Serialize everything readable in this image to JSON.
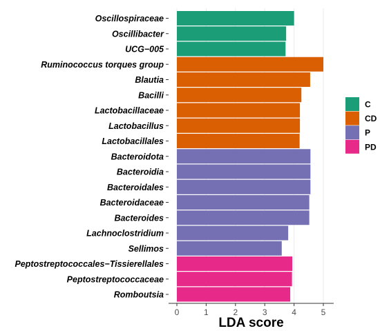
{
  "chart_data": {
    "type": "bar",
    "orientation": "horizontal",
    "title": "",
    "xlabel": "LDA score",
    "ylabel": "",
    "xlim": [
      0,
      5.3
    ],
    "xticks": [
      0,
      1,
      2,
      3,
      4,
      5
    ],
    "grid": "vertical",
    "legend_position": "right",
    "groups": [
      {
        "name": "C",
        "color": "#1b9e77"
      },
      {
        "name": "CD",
        "color": "#d95f02"
      },
      {
        "name": "P",
        "color": "#7570b3"
      },
      {
        "name": "PD",
        "color": "#e7298a"
      }
    ],
    "bars": [
      {
        "label": "Oscillospiraceae",
        "value": 4.0,
        "group": "C"
      },
      {
        "label": "Oscillibacter",
        "value": 3.73,
        "group": "C"
      },
      {
        "label": "UCG−005",
        "value": 3.71,
        "group": "C"
      },
      {
        "label": "Ruminococcus torques group",
        "value": 5.0,
        "group": "CD"
      },
      {
        "label": "Blautia",
        "value": 4.55,
        "group": "CD"
      },
      {
        "label": "Bacilli",
        "value": 4.25,
        "group": "CD"
      },
      {
        "label": "Lactobacillaceae",
        "value": 4.2,
        "group": "CD"
      },
      {
        "label": "Lactobacillus",
        "value": 4.2,
        "group": "CD"
      },
      {
        "label": "Lactobacillales",
        "value": 4.19,
        "group": "CD"
      },
      {
        "label": "Bacteroidota",
        "value": 4.56,
        "group": "P"
      },
      {
        "label": "Bacteroidia",
        "value": 4.56,
        "group": "P"
      },
      {
        "label": "Bacteroidales",
        "value": 4.56,
        "group": "P"
      },
      {
        "label": "Bacteroidaceae",
        "value": 4.52,
        "group": "P"
      },
      {
        "label": "Bacteroides",
        "value": 4.52,
        "group": "P"
      },
      {
        "label": "Lachnoclostridium",
        "value": 3.8,
        "group": "P"
      },
      {
        "label": "Sellimos",
        "value": 3.58,
        "group": "P"
      },
      {
        "label": "Peptostreptococcales−Tissierellales",
        "value": 3.94,
        "group": "PD"
      },
      {
        "label": "Peptostreptococcaceae",
        "value": 3.93,
        "group": "PD"
      },
      {
        "label": "Romboutsia",
        "value": 3.87,
        "group": "PD"
      }
    ]
  }
}
